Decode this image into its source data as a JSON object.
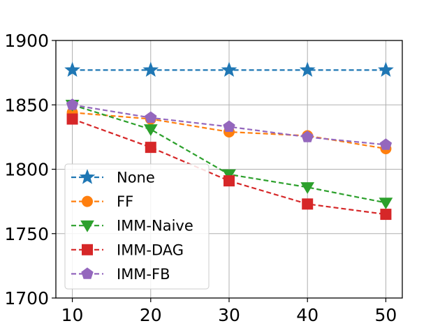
{
  "chart_data": {
    "type": "line",
    "title": "",
    "xlabel": "",
    "ylabel": "",
    "x": [
      10,
      20,
      30,
      40,
      50
    ],
    "xlim": [
      7.9,
      52.1
    ],
    "ylim": [
      1700,
      1900
    ],
    "xticks": [
      "10",
      "20",
      "30",
      "40",
      "50"
    ],
    "yticks": [
      "1700",
      "1750",
      "1800",
      "1850",
      "1900"
    ],
    "grid": true,
    "legend_position": "lower-left",
    "series": [
      {
        "name": "None",
        "color": "#1f77b4",
        "marker": "star",
        "values": [
          1877,
          1877,
          1877,
          1877,
          1877
        ]
      },
      {
        "name": "FF",
        "color": "#ff7f0e",
        "marker": "circle",
        "values": [
          1844,
          1839,
          1829,
          1826,
          1816
        ]
      },
      {
        "name": "IMM-Naive",
        "color": "#2ca02c",
        "marker": "triangle-down",
        "values": [
          1850,
          1831,
          1796,
          1786,
          1774
        ]
      },
      {
        "name": "IMM-DAG",
        "color": "#d62728",
        "marker": "square",
        "values": [
          1839,
          1817,
          1791,
          1773,
          1765
        ]
      },
      {
        "name": "IMM-FB",
        "color": "#9467bd",
        "marker": "pentagon",
        "values": [
          1850,
          1840,
          1833,
          1825,
          1819
        ]
      }
    ]
  }
}
